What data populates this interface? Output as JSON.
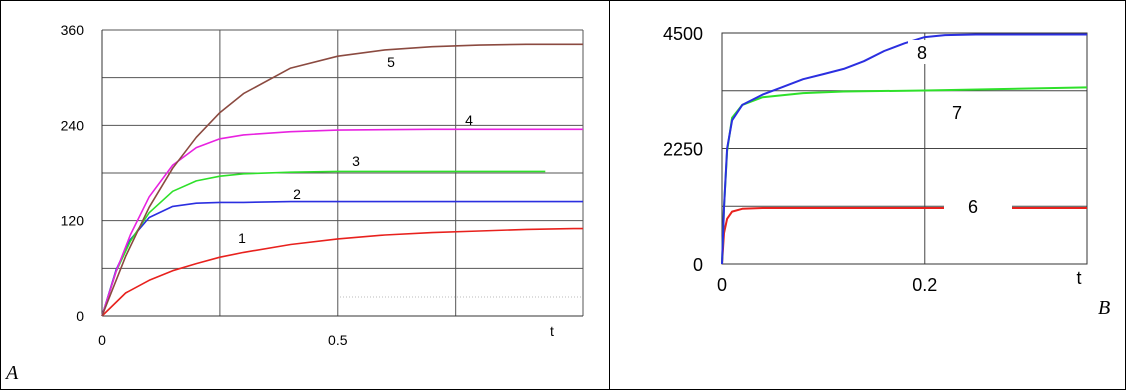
{
  "panels": [
    {
      "label": "A",
      "chart_data": {
        "type": "line",
        "title": "",
        "xlabel": "t",
        "ylabel": "",
        "xlim": [
          0,
          1.02
        ],
        "ylim": [
          0,
          360
        ],
        "grid": true,
        "x_ticks": [
          0,
          0.5
        ],
        "x_tick_labels": [
          "0",
          "0.5"
        ],
        "y_ticks": [
          0,
          120,
          240,
          360
        ],
        "y_tick_labels": [
          "0",
          "120",
          "240",
          "360"
        ],
        "series": [
          {
            "name": "1",
            "color": "#e8211d",
            "x": [
              0,
              0.05,
              0.1,
              0.15,
              0.2,
              0.25,
              0.3,
              0.4,
              0.5,
              0.6,
              0.7,
              0.8,
              0.9,
              1.0,
              1.02
            ],
            "y": [
              0,
              29,
              45,
              57,
              66,
              74,
              80,
              90,
              97,
              102,
              105,
              107,
              109,
              110,
              110
            ]
          },
          {
            "name": "2",
            "color": "#2b2fe0",
            "x": [
              0,
              0.03,
              0.06,
              0.1,
              0.15,
              0.2,
              0.25,
              0.3,
              0.4,
              0.5,
              0.7,
              1.02
            ],
            "y": [
              0,
              58,
              96,
              124,
              138,
              142,
              143,
              143,
              144,
              144,
              144,
              144
            ]
          },
          {
            "name": "3",
            "color": "#2ee02a",
            "x": [
              0,
              0.03,
              0.06,
              0.1,
              0.15,
              0.2,
              0.25,
              0.3,
              0.4,
              0.5,
              0.7,
              0.94
            ],
            "y": [
              0,
              56,
              94,
              130,
              157,
              170,
              176,
              179,
              181,
              182,
              182,
              182
            ]
          },
          {
            "name": "4",
            "color": "#e822e0",
            "x": [
              0,
              0.03,
              0.06,
              0.1,
              0.15,
              0.2,
              0.25,
              0.3,
              0.4,
              0.5,
              0.7,
              1.02
            ],
            "y": [
              0,
              56,
              102,
              150,
              190,
              212,
              223,
              228,
              232,
              234,
              235,
              235
            ]
          },
          {
            "name": "5",
            "color": "#8b4a40",
            "x": [
              0,
              0.05,
              0.1,
              0.15,
              0.2,
              0.25,
              0.3,
              0.4,
              0.5,
              0.6,
              0.7,
              0.8,
              0.9,
              1.02
            ],
            "y": [
              0,
              75,
              137,
              186,
              225,
              256,
              280,
              312,
              327,
              335,
              339,
              341,
              342,
              342
            ]
          }
        ],
        "annotations": [
          "1",
          "2",
          "3",
          "4",
          "5"
        ]
      }
    },
    {
      "label": "B",
      "chart_data": {
        "type": "line",
        "title": "",
        "xlabel": "t",
        "ylabel": "",
        "xlim": [
          0,
          0.36
        ],
        "ylim": [
          0,
          4500
        ],
        "grid": true,
        "x_ticks": [
          0,
          0.2
        ],
        "x_tick_labels": [
          "0",
          "0.2"
        ],
        "y_ticks": [
          0,
          2250,
          4500
        ],
        "y_tick_labels": [
          "0",
          "2250",
          "4500"
        ],
        "series": [
          {
            "name": "6",
            "color": "#e8211d",
            "x": [
              0,
              0.002,
              0.005,
              0.01,
              0.02,
              0.04,
              0.06,
              0.1,
              0.2,
              0.36
            ],
            "y": [
              0,
              600,
              880,
              1020,
              1075,
              1090,
              1090,
              1090,
              1090,
              1090
            ]
          },
          {
            "name": "7",
            "color": "#2ee02a",
            "x": [
              0,
              0.002,
              0.005,
              0.01,
              0.02,
              0.04,
              0.08,
              0.12,
              0.2,
              0.36
            ],
            "y": [
              0,
              1100,
              2200,
              2850,
              3100,
              3250,
              3330,
              3360,
              3380,
              3440
            ]
          },
          {
            "name": "8",
            "color": "#2b2fe0",
            "x": [
              0,
              0.002,
              0.005,
              0.01,
              0.02,
              0.04,
              0.06,
              0.08,
              0.1,
              0.12,
              0.14,
              0.16,
              0.18,
              0.2,
              0.22,
              0.25,
              0.3,
              0.36
            ],
            "y": [
              0,
              1100,
              2250,
              2800,
              3100,
              3300,
              3450,
              3600,
              3700,
              3800,
              3950,
              4150,
              4300,
              4420,
              4460,
              4470,
              4470,
              4470
            ]
          }
        ],
        "annotations": [
          "6",
          "7",
          "8"
        ]
      }
    }
  ]
}
